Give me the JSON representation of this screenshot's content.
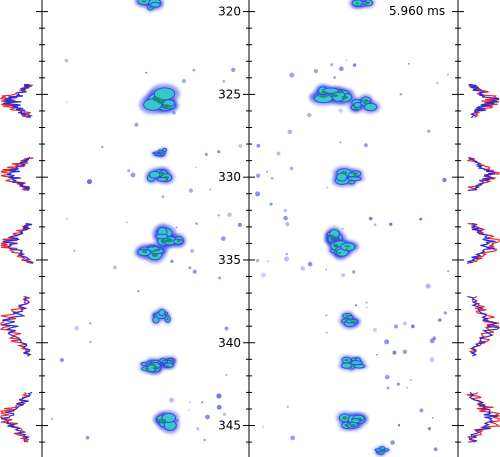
{
  "time_label": "5.960 ms",
  "colors": {
    "trace_red": "#e8282e",
    "trace_blue": "#2a2ad6",
    "blob_outer": "#3c46e6",
    "blob_mid": "#34c8c8",
    "blob_core": "#1a8a6a",
    "axis": "#000000"
  },
  "chart_data": {
    "type": "heatmap",
    "title": "",
    "xlabel": "",
    "ylabel": "",
    "y_axis": {
      "labels": [
        "320",
        "325",
        "330",
        "335",
        "340",
        "345"
      ],
      "values": [
        320,
        325,
        330,
        335,
        340,
        345
      ],
      "range": [
        319.3,
        346.9
      ],
      "inverted": true
    },
    "panels": [
      "left",
      "right"
    ],
    "side_traces": {
      "series": [
        {
          "name": "",
          "color": "#e8282e"
        },
        {
          "name": "",
          "color": "#2a2ad6"
        }
      ],
      "rows": [
        {
          "center": 325.4,
          "span": 2.0
        },
        {
          "center": 329.8,
          "span": 2.0
        },
        {
          "center": 334.0,
          "span": 2.4
        },
        {
          "center": 339.0,
          "span": 3.6
        },
        {
          "center": 344.5,
          "span": 3.0
        }
      ]
    },
    "blobs": [
      {
        "panel": "left",
        "x": 0.52,
        "y": 319.5,
        "size": 0.6
      },
      {
        "panel": "left",
        "x": 0.55,
        "y": 325.3,
        "size": 1.0
      },
      {
        "panel": "left",
        "x": 0.57,
        "y": 328.5,
        "size": 0.35
      },
      {
        "panel": "left",
        "x": 0.56,
        "y": 330.0,
        "size": 0.65
      },
      {
        "panel": "left",
        "x": 0.62,
        "y": 333.6,
        "size": 0.75
      },
      {
        "panel": "left",
        "x": 0.53,
        "y": 334.4,
        "size": 0.75
      },
      {
        "panel": "left",
        "x": 0.58,
        "y": 338.4,
        "size": 0.55
      },
      {
        "panel": "left",
        "x": 0.52,
        "y": 341.4,
        "size": 0.55
      },
      {
        "panel": "left",
        "x": 0.6,
        "y": 341.2,
        "size": 0.5
      },
      {
        "panel": "left",
        "x": 0.59,
        "y": 344.8,
        "size": 0.8
      },
      {
        "panel": "right",
        "x": 0.55,
        "y": 319.4,
        "size": 0.5
      },
      {
        "panel": "right",
        "x": 0.41,
        "y": 325.0,
        "size": 0.9
      },
      {
        "panel": "right",
        "x": 0.55,
        "y": 325.6,
        "size": 0.6
      },
      {
        "panel": "right",
        "x": 0.48,
        "y": 330.0,
        "size": 0.7
      },
      {
        "panel": "right",
        "x": 0.38,
        "y": 333.6,
        "size": 0.7
      },
      {
        "panel": "right",
        "x": 0.46,
        "y": 334.3,
        "size": 0.7
      },
      {
        "panel": "right",
        "x": 0.47,
        "y": 338.6,
        "size": 0.6
      },
      {
        "panel": "right",
        "x": 0.5,
        "y": 341.2,
        "size": 0.55
      },
      {
        "panel": "right",
        "x": 0.5,
        "y": 344.7,
        "size": 0.7
      },
      {
        "panel": "right",
        "x": 0.64,
        "y": 346.5,
        "size": 0.35
      }
    ]
  }
}
